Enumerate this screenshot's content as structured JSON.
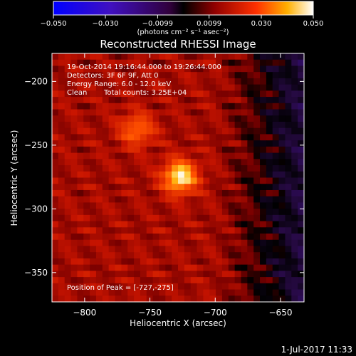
{
  "chart_data": {
    "type": "heatmap",
    "title": "Reconstructed RHESSI Image",
    "xlabel": "Heliocentric X (arcsec)",
    "ylabel": "Heliocentric Y (arcsec)",
    "xlim": [
      -825,
      -632
    ],
    "ylim": [
      -373,
      -178
    ],
    "x_ticks": [
      -800,
      -750,
      -700,
      -650
    ],
    "x_tick_labels": [
      "−800",
      "−750",
      "−700",
      "−650"
    ],
    "y_ticks": [
      -200,
      -250,
      -300,
      -350
    ],
    "y_tick_labels": [
      "−200",
      "−250",
      "−300",
      "−350"
    ],
    "colorbar": {
      "range": [
        -0.05,
        0.05
      ],
      "ticks": [
        -0.05,
        -0.03,
        -0.0099,
        0.0099,
        0.03,
        0.05
      ],
      "tick_labels": [
        "−0.050",
        "−0.030",
        "−0.0099",
        "0.0099",
        "0.030",
        "0.050"
      ],
      "unit_label": "(photons cm⁻² s⁻¹ asec⁻²)"
    },
    "sources": [
      {
        "x": -727,
        "y": -275,
        "peak": 0.05
      },
      {
        "x": -760,
        "y": -238,
        "peak": 0.033
      }
    ],
    "annotations": {
      "time_range": "19-Oct-2014 19:16:44.000 to 19:26:44.000",
      "detectors": "Detectors: 3F 6F 9F, Att 0",
      "energy": "Energy Range: 6.0 - 12.0 keV",
      "clean": "Clean",
      "counts": "Total counts: 3.25E+04",
      "peak": "Position of Peak = [-727,-275]"
    },
    "footer_date": "1-Jul-2017 11:33"
  }
}
